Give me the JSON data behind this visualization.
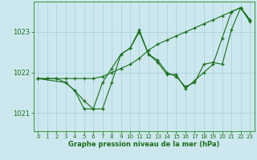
{
  "bg_color": "#cce8ee",
  "grid_color": "#aad4dc",
  "line_color": "#1a6e1a",
  "marker_color": "#1a6e1a",
  "xlabel": "Graphe pression niveau de la mer (hPa)",
  "xlim": [
    -0.5,
    23.5
  ],
  "ylim": [
    1020.55,
    1023.75
  ],
  "yticks": [
    1021,
    1022,
    1023
  ],
  "xticks": [
    0,
    1,
    2,
    3,
    4,
    5,
    6,
    7,
    8,
    9,
    10,
    11,
    12,
    13,
    14,
    15,
    16,
    17,
    18,
    19,
    20,
    21,
    22,
    23
  ],
  "series": [
    {
      "x": [
        0,
        1,
        2,
        3,
        4,
        5,
        6,
        7,
        8,
        9,
        10,
        11,
        12,
        13,
        14,
        15,
        16,
        17,
        18,
        19,
        20,
        21,
        22,
        23
      ],
      "y": [
        1021.85,
        1021.85,
        1021.85,
        1021.75,
        1021.55,
        1021.1,
        1021.1,
        1021.75,
        1022.1,
        1022.45,
        1022.6,
        1023.0,
        1022.45,
        1022.25,
        1021.95,
        1021.95,
        1021.6,
        1021.8,
        1022.0,
        1022.2,
        1022.85,
        1023.5,
        1023.6,
        1023.25
      ]
    },
    {
      "x": [
        0,
        1,
        2,
        3,
        4,
        5,
        6,
        7,
        8,
        9,
        10,
        11,
        12,
        13,
        14,
        15,
        16,
        17,
        18,
        19,
        20,
        21,
        22,
        23
      ],
      "y": [
        1021.85,
        1021.85,
        1021.85,
        1021.85,
        1021.85,
        1021.85,
        1021.85,
        1021.9,
        1022.0,
        1022.1,
        1022.2,
        1022.35,
        1022.55,
        1022.7,
        1022.8,
        1022.9,
        1023.0,
        1023.1,
        1023.2,
        1023.3,
        1023.4,
        1023.5,
        1023.6,
        1023.3
      ]
    },
    {
      "x": [
        0,
        3,
        4,
        5,
        6,
        7,
        8,
        9,
        10,
        11,
        12,
        13,
        14,
        15,
        16,
        17,
        18,
        19,
        20,
        21,
        22,
        23
      ],
      "y": [
        1021.85,
        1021.75,
        1021.55,
        1021.3,
        1021.1,
        1021.1,
        1021.75,
        1022.45,
        1022.6,
        1023.05,
        1022.45,
        1022.3,
        1022.0,
        1021.9,
        1021.65,
        1021.75,
        1022.2,
        1022.25,
        1022.2,
        1023.05,
        1023.6,
        1023.3
      ]
    }
  ]
}
